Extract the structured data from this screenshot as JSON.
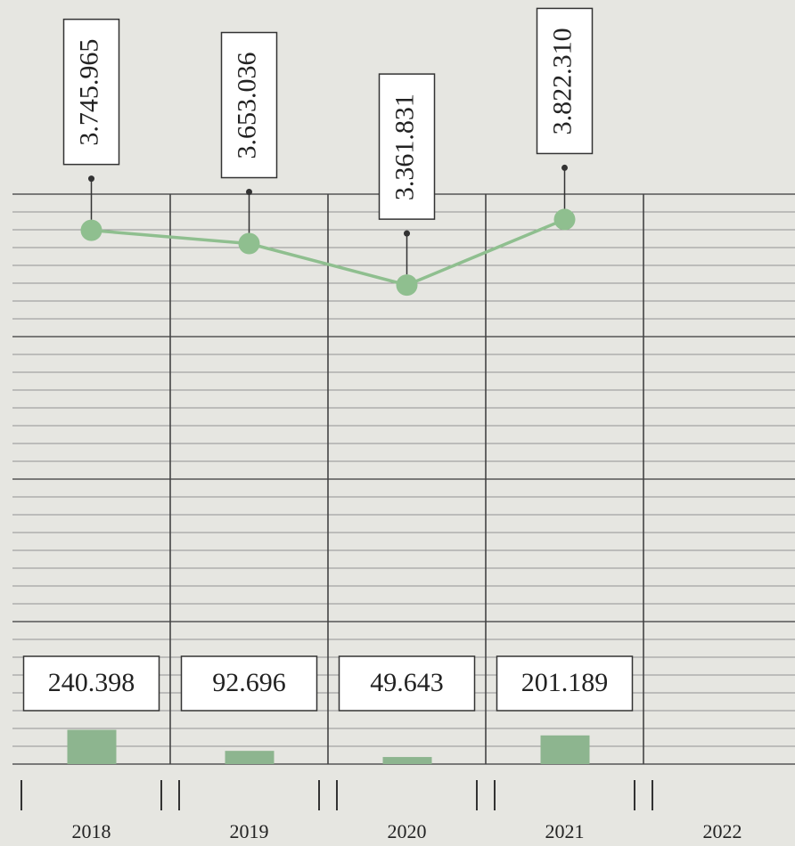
{
  "chart_data": {
    "type": "combo",
    "categories": [
      "2018",
      "2019",
      "2020",
      "2021",
      "2022"
    ],
    "series": [
      {
        "type": "line",
        "color": "#8fbf8f",
        "values": [
          3745965,
          3653036,
          3361831,
          3822310,
          null
        ],
        "value_labels": [
          "3.745.965",
          "3.653.036",
          "3.361.831",
          "3.822.310",
          null
        ]
      },
      {
        "type": "bar",
        "color": "#8db58f",
        "values": [
          240398,
          92696,
          49643,
          201189,
          null
        ],
        "value_labels": [
          "240.398",
          "92.696",
          "49.643",
          "201.189",
          null
        ]
      }
    ],
    "ylim": [
      0,
      4000000
    ],
    "yticks": [
      0,
      1000000,
      2000000,
      3000000,
      4000000
    ],
    "grid": true
  }
}
